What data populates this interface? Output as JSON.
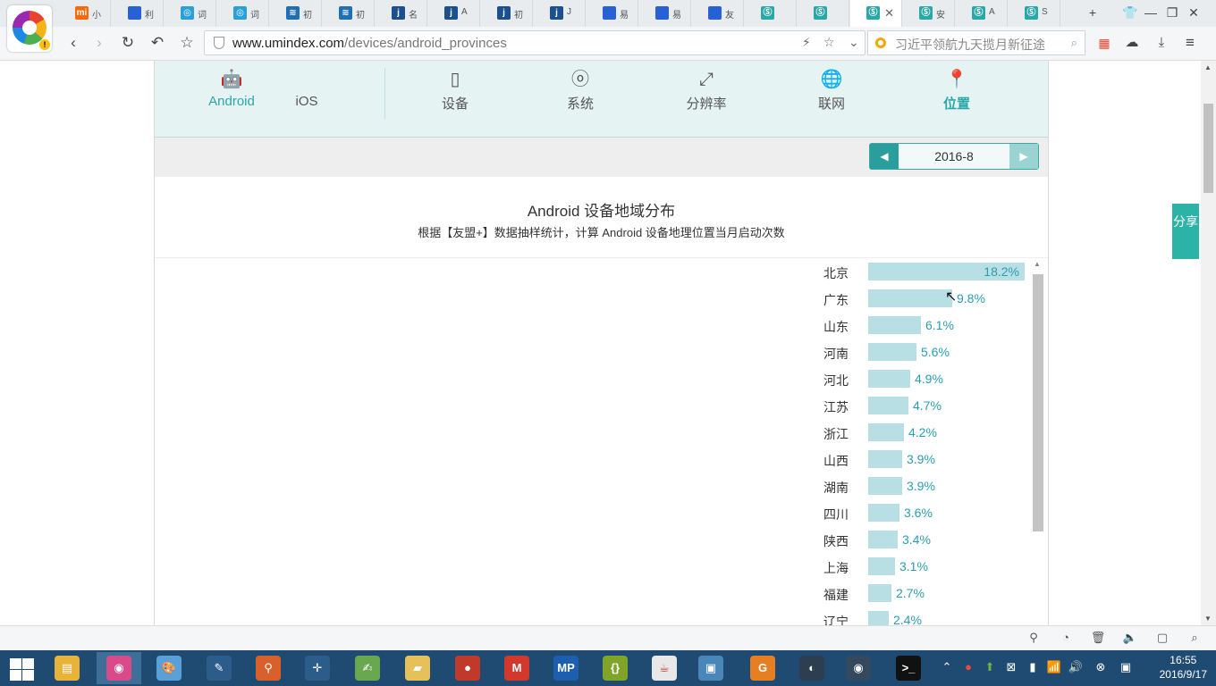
{
  "browser": {
    "tabs": [
      {
        "icon": "mi-icon",
        "label": "小",
        "color": "#ff6700",
        "glyph": "mi"
      },
      {
        "icon": "paw-icon",
        "label": "利",
        "color": "#2b5fd9",
        "glyph": "🐾"
      },
      {
        "icon": "sound-icon",
        "label": "词",
        "color": "#29a0d8",
        "glyph": "◎"
      },
      {
        "icon": "sound-icon",
        "label": "词",
        "color": "#29a0d8",
        "glyph": "◎"
      },
      {
        "icon": "stripe-icon",
        "label": "初",
        "color": "#1f6fb5",
        "glyph": "≋"
      },
      {
        "icon": "stripe-icon",
        "label": "初",
        "color": "#1f6fb5",
        "glyph": "≋"
      },
      {
        "icon": "j-icon",
        "label": "名",
        "color": "#1b4f8f",
        "glyph": "j"
      },
      {
        "icon": "j-icon",
        "label": "A",
        "color": "#1b4f8f",
        "glyph": "j"
      },
      {
        "icon": "j-icon",
        "label": "初",
        "color": "#1b4f8f",
        "glyph": "j"
      },
      {
        "icon": "j-icon",
        "label": "J",
        "color": "#1b4f8f",
        "glyph": "j"
      },
      {
        "icon": "paw-icon",
        "label": "易",
        "color": "#2b5fd9",
        "glyph": "🐾"
      },
      {
        "icon": "paw-icon",
        "label": "易",
        "color": "#2b5fd9",
        "glyph": "🐾"
      },
      {
        "icon": "paw-icon",
        "label": "友",
        "color": "#2b5fd9",
        "glyph": "🐾"
      },
      {
        "icon": "umeng-icon",
        "label": "",
        "color": "#2aa7a7",
        "glyph": "Ⓢ"
      },
      {
        "icon": "umeng-icon",
        "label": "",
        "color": "#2aa7a7",
        "glyph": "Ⓢ"
      },
      {
        "icon": "umeng-icon",
        "label": "",
        "color": "#2aa7a7",
        "glyph": "Ⓢ",
        "active": true
      },
      {
        "icon": "umeng-icon",
        "label": "安",
        "color": "#2aa7a7",
        "glyph": "Ⓢ"
      },
      {
        "icon": "umeng-icon",
        "label": "A",
        "color": "#2aa7a7",
        "glyph": "Ⓢ"
      },
      {
        "icon": "umeng-icon",
        "label": "S",
        "color": "#2aa7a7",
        "glyph": "Ⓢ"
      }
    ],
    "url_host": "www.umindex.com",
    "url_path": "/devices/android_provinces",
    "search_placeholder": "习近平领航九天揽月新征途"
  },
  "nav": {
    "categories": [
      {
        "label": "Android",
        "icon": "android-icon",
        "glyph": "🤖",
        "on": true
      },
      {
        "label": "iOS",
        "icon": "apple-icon",
        "glyph": ""
      },
      {
        "label": "设备",
        "icon": "phone-icon",
        "glyph": "▯"
      },
      {
        "label": "系统",
        "icon": "os-icon",
        "glyph": "ⓞ"
      },
      {
        "label": "分辨率",
        "icon": "resize-icon",
        "glyph": "⤢"
      },
      {
        "label": "联网",
        "icon": "globe-icon",
        "glyph": "🌐"
      },
      {
        "label": "位置",
        "icon": "location-pin-icon",
        "glyph": "📍",
        "on": true,
        "bold": true
      }
    ]
  },
  "date": {
    "value": "2016-8"
  },
  "chart_data": {
    "type": "bar",
    "orientation": "horizontal",
    "title": "Android 设备地域分布",
    "subtitle": "根据【友盟+】数据抽样统计，计算 Android 设备地理位置当月启动次数",
    "categories": [
      "北京",
      "广东",
      "山东",
      "河南",
      "河北",
      "江苏",
      "浙江",
      "山西",
      "湖南",
      "四川",
      "陕西",
      "上海",
      "福建",
      "辽宁"
    ],
    "values": [
      18.2,
      9.8,
      6.1,
      5.6,
      4.9,
      4.7,
      4.2,
      3.9,
      3.9,
      3.6,
      3.4,
      3.1,
      2.7,
      2.4
    ],
    "labels": [
      "18.2%",
      "9.8%",
      "6.1%",
      "5.6%",
      "4.9%",
      "4.7%",
      "4.2%",
      "3.9%",
      "3.9%",
      "3.6%",
      "3.4%",
      "3.1%",
      "2.7%",
      "2.4%"
    ],
    "unit": "%",
    "bar_color": "#b8dfe3",
    "label_color": "#2a9db0"
  },
  "share": {
    "label": "分享"
  },
  "taskbar": {
    "apps": [
      {
        "icon": "file-explorer-icon",
        "color": "#e8b339",
        "glyph": "▤"
      },
      {
        "icon": "browser-icon",
        "color": "#d84a8a",
        "glyph": "◉",
        "active": true
      },
      {
        "icon": "paint-icon",
        "color": "#5aa0d8",
        "glyph": "🎨"
      },
      {
        "icon": "tool-icon",
        "color": "#2c5d8a",
        "glyph": "✎"
      },
      {
        "icon": "search-tool-icon",
        "color": "#d8602a",
        "glyph": "⚲"
      },
      {
        "icon": "crosshair-icon",
        "color": "#2c5d8a",
        "glyph": "✛"
      },
      {
        "icon": "notebook-icon",
        "color": "#6aa84f",
        "glyph": "✍"
      },
      {
        "icon": "folder-icon",
        "color": "#e6c15a",
        "glyph": "▰"
      },
      {
        "icon": "ball-icon",
        "color": "#c0392b",
        "glyph": "●"
      },
      {
        "icon": "m-icon",
        "color": "#d0392b",
        "glyph": "M"
      },
      {
        "icon": "mp-icon",
        "color": "#1d5fae",
        "glyph": "MP"
      },
      {
        "icon": "braces-icon",
        "color": "#7fa427",
        "glyph": "{}"
      },
      {
        "icon": "java-icon",
        "color": "#e8e8e8",
        "glyph": "☕"
      },
      {
        "icon": "image-viewer-icon",
        "color": "#4a86b8",
        "glyph": "▣"
      },
      {
        "icon": "pdf-icon",
        "color": "#e67e22",
        "glyph": "G"
      },
      {
        "icon": "eclipse-icon",
        "color": "#2c3e50",
        "glyph": "◐"
      },
      {
        "icon": "media-icon",
        "color": "#34495e",
        "glyph": "◉"
      },
      {
        "icon": "terminal-icon",
        "color": "#111111",
        "glyph": ">_"
      }
    ],
    "time": "16:55",
    "date": "2016/9/17"
  }
}
